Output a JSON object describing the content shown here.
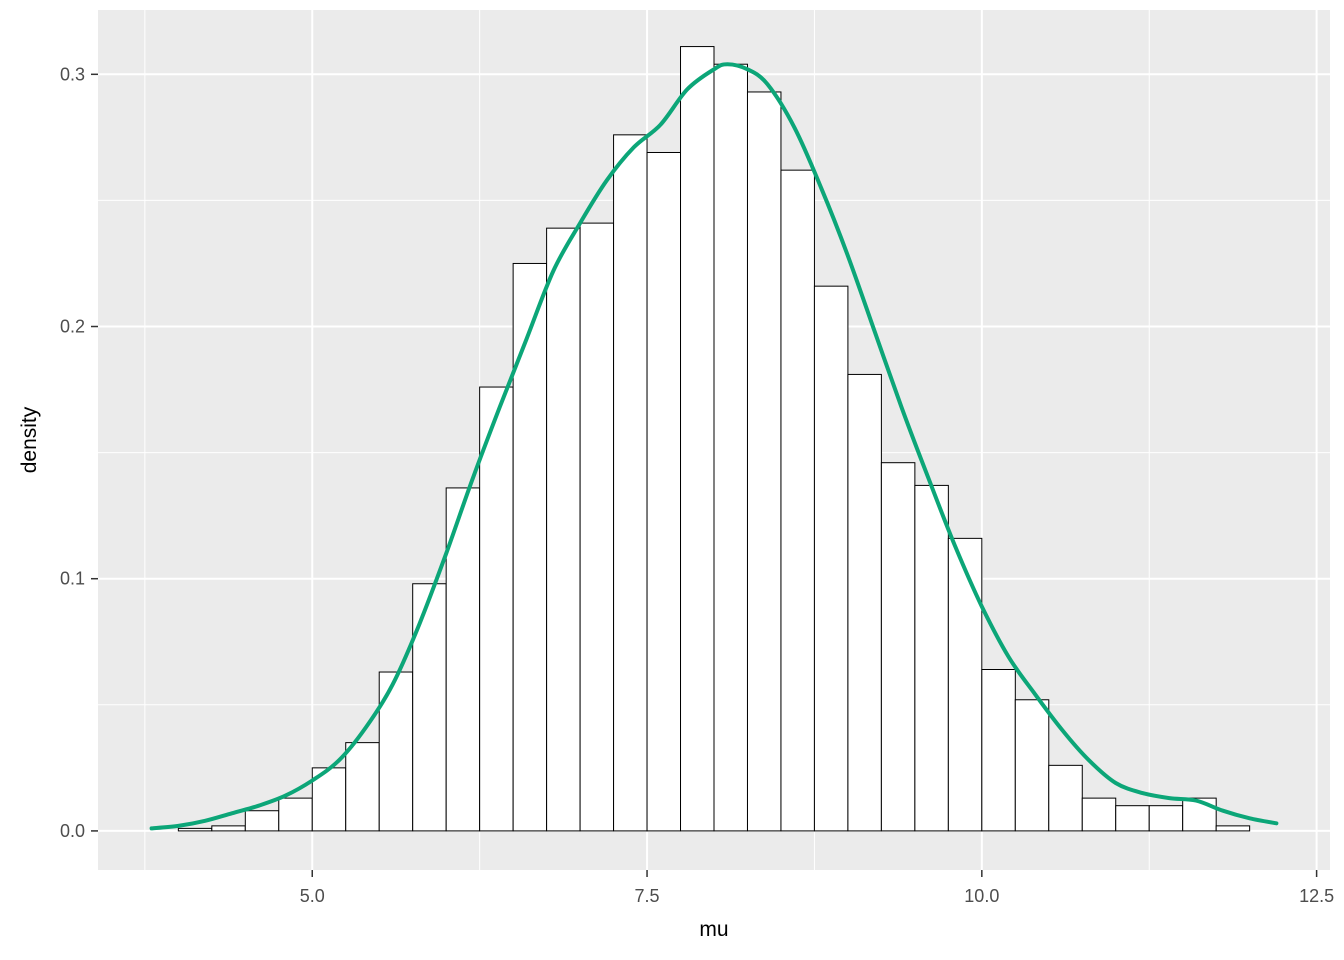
{
  "chart_data": {
    "type": "bar",
    "subtype": "histogram_with_density_overlay",
    "title": "",
    "xlabel": "mu",
    "ylabel": "density",
    "xlim": [
      3.4,
      12.6
    ],
    "ylim": [
      -0.0155,
      0.3255
    ],
    "x_ticks": [
      5.0,
      7.5,
      10.0,
      12.5
    ],
    "x_tick_labels": [
      "5.0",
      "7.5",
      "10.0",
      "12.5"
    ],
    "x_minor_ticks": [
      3.75,
      6.25,
      8.75,
      11.25
    ],
    "y_ticks": [
      0.0,
      0.1,
      0.2,
      0.3
    ],
    "y_tick_labels": [
      "0.0",
      "0.1",
      "0.2",
      "0.3"
    ],
    "y_minor_ticks": [
      0.05,
      0.15,
      0.25
    ],
    "grid": "on",
    "legend": "none",
    "binwidth": 0.25,
    "histogram": {
      "bin_start": [
        4.0,
        4.25,
        4.5,
        4.75,
        5.0,
        5.25,
        5.5,
        5.75,
        6.0,
        6.25,
        6.5,
        6.75,
        7.0,
        7.25,
        7.5,
        7.75,
        8.0,
        8.25,
        8.5,
        8.75,
        9.0,
        9.25,
        9.5,
        9.75,
        10.0,
        10.25,
        10.5,
        10.75,
        11.0,
        11.25,
        11.5,
        11.75
      ],
      "density": [
        0.001,
        0.002,
        0.008,
        0.013,
        0.025,
        0.035,
        0.063,
        0.098,
        0.136,
        0.176,
        0.225,
        0.239,
        0.241,
        0.276,
        0.269,
        0.311,
        0.304,
        0.293,
        0.262,
        0.216,
        0.181,
        0.146,
        0.137,
        0.116,
        0.064,
        0.052,
        0.026,
        0.013,
        0.01,
        0.01,
        0.013,
        0.002
      ]
    },
    "density_curve": {
      "x": [
        3.8,
        4.0,
        4.2,
        4.4,
        4.6,
        4.8,
        5.0,
        5.2,
        5.4,
        5.6,
        5.8,
        6.0,
        6.2,
        6.4,
        6.6,
        6.8,
        7.0,
        7.2,
        7.4,
        7.6,
        7.8,
        8.0,
        8.1,
        8.25,
        8.4,
        8.6,
        8.8,
        9.0,
        9.2,
        9.4,
        9.6,
        9.8,
        10.0,
        10.2,
        10.4,
        10.6,
        10.8,
        11.0,
        11.2,
        11.4,
        11.6,
        11.8,
        12.0,
        12.2
      ],
      "y": [
        0.001,
        0.002,
        0.004,
        0.007,
        0.01,
        0.014,
        0.02,
        0.028,
        0.041,
        0.058,
        0.082,
        0.11,
        0.14,
        0.168,
        0.195,
        0.222,
        0.241,
        0.258,
        0.271,
        0.28,
        0.294,
        0.302,
        0.304,
        0.302,
        0.296,
        0.279,
        0.255,
        0.228,
        0.198,
        0.168,
        0.14,
        0.113,
        0.089,
        0.069,
        0.054,
        0.04,
        0.028,
        0.019,
        0.015,
        0.013,
        0.012,
        0.008,
        0.005,
        0.003
      ]
    },
    "colors": {
      "panel_background": "#EBEBEB",
      "grid_major": "#FFFFFF",
      "grid_minor": "#FFFFFF",
      "bar_fill": "#FFFFFF",
      "bar_stroke": "#000000",
      "density_line": "#0CA678",
      "tick_mark": "#333333",
      "tick_label": "#4D4D4D",
      "axis_title": "#000000"
    }
  }
}
